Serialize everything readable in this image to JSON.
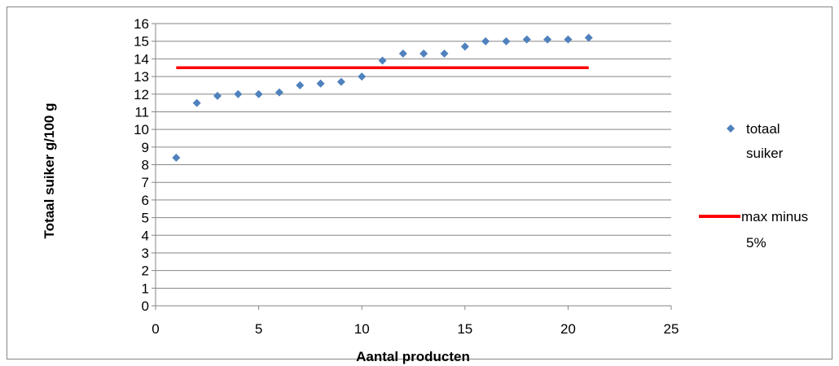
{
  "chart_data": {
    "type": "scatter",
    "title": "",
    "xlabel": "Aantal producten",
    "ylabel": "Totaal suiker g/100 g",
    "xlim": [
      0,
      25
    ],
    "ylim": [
      0,
      16
    ],
    "xticks": [
      "0",
      "5",
      "10",
      "15",
      "20",
      "25"
    ],
    "yticks": [
      "0",
      "1",
      "2",
      "3",
      "4",
      "5",
      "6",
      "7",
      "8",
      "9",
      "10",
      "11",
      "12",
      "13",
      "14",
      "15",
      "16"
    ],
    "grid": "horizontal",
    "legend_position": "right",
    "series": [
      {
        "name_lines": [
          "totaal",
          "suiker"
        ],
        "kind": "scatter",
        "marker": "diamond",
        "color": "#4F81BD",
        "points": [
          [
            1,
            8.4
          ],
          [
            2,
            11.5
          ],
          [
            3,
            11.9
          ],
          [
            4,
            12.0
          ],
          [
            5,
            12.0
          ],
          [
            6,
            12.1
          ],
          [
            7,
            12.5
          ],
          [
            8,
            12.6
          ],
          [
            9,
            12.7
          ],
          [
            10,
            13.0
          ],
          [
            11,
            13.9
          ],
          [
            12,
            14.3
          ],
          [
            13,
            14.3
          ],
          [
            14,
            14.3
          ],
          [
            15,
            14.7
          ],
          [
            16,
            15.0
          ],
          [
            17,
            15.0
          ],
          [
            18,
            15.1
          ],
          [
            19,
            15.1
          ],
          [
            20,
            15.1
          ],
          [
            21,
            15.2
          ]
        ]
      },
      {
        "name_lines": [
          "max minus",
          "5%"
        ],
        "kind": "line",
        "color": "#FF0000",
        "points": [
          [
            1,
            13.5
          ],
          [
            21,
            13.5
          ]
        ]
      }
    ]
  }
}
